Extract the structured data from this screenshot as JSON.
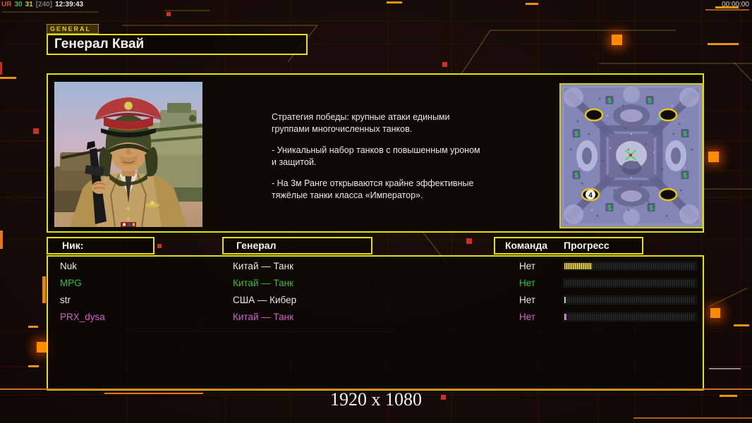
{
  "statusbar": {
    "parts": [
      {
        "text": "UR",
        "color": "#cc5522"
      },
      {
        "text": "30",
        "color": "#44bb44"
      },
      {
        "text": "31",
        "color": "#cccc33"
      },
      {
        "text": "[240]",
        "color": "#777777"
      },
      {
        "text": "12:39:43",
        "color": "#e8e8e8"
      }
    ],
    "timer": "00:00:00"
  },
  "header": {
    "tab_label": "GENERAL",
    "title": "Генерал Квай"
  },
  "info": {
    "paragraphs": [
      "Стратегия победы: крупные атаки едиными\n группами многочисленных танков.",
      "- Уникальный набор танков с повышенным уроном\n и защитой.",
      "- На 3м Ранге открываются крайне эффективные\n тяжёлые танки класса «Император»."
    ]
  },
  "minimap": {
    "player_number": "4",
    "supply_icon": "$"
  },
  "table": {
    "headers": {
      "nick": "Ник:",
      "general": "Генерал",
      "team": "Команда",
      "progress": "Прогресс"
    },
    "rows": [
      {
        "nick": "Nuk",
        "general": "Китай — Танк",
        "team": "Нет",
        "progress_pct": 21,
        "color": "#e8e8e8",
        "fill_light": "#f5e878",
        "fill_dark": "#8f7a1e"
      },
      {
        "nick": "MPG",
        "general": "Китай — Танк",
        "team": "Нет",
        "progress_pct": 0,
        "color": "#2fc32f",
        "fill_light": "#f5e878",
        "fill_dark": "#8f7a1e"
      },
      {
        "nick": "str",
        "general": "США — Кибер",
        "team": "Нет",
        "progress_pct": 1,
        "color": "#e8e8e8",
        "fill_light": "#f0f0f0",
        "fill_dark": "#9a9a9a"
      },
      {
        "nick": "PRX_dysa",
        "general": "Китай — Танк",
        "team": "Нет",
        "progress_pct": 1.5,
        "color": "#d060d0",
        "fill_light": "#f2b6f2",
        "fill_dark": "#b06ab0"
      }
    ]
  },
  "footer": {
    "resolution": "1920 x 1080"
  },
  "colors": {
    "border_yellow": "#e6e00a",
    "accent_orange": "#e8820a",
    "decor_red": "#d03020",
    "progress_fill": "#e0c840",
    "team_green": "#2fc32f",
    "player_magenta": "#d060d0"
  }
}
